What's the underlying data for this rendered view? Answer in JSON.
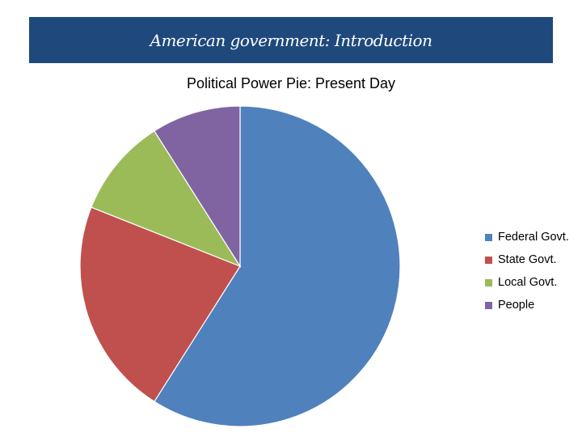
{
  "header": {
    "title": "American government: Introduction"
  },
  "chart_data": {
    "type": "pie",
    "title": "Political Power Pie: Present Day",
    "categories": [
      "Federal Govt.",
      "State Govt.",
      "Local Govt.",
      "People"
    ],
    "values": [
      59,
      22,
      10,
      9
    ],
    "colors": [
      "#4f81bd",
      "#c0504d",
      "#9bbb59",
      "#8064a2"
    ],
    "legend": "right"
  }
}
